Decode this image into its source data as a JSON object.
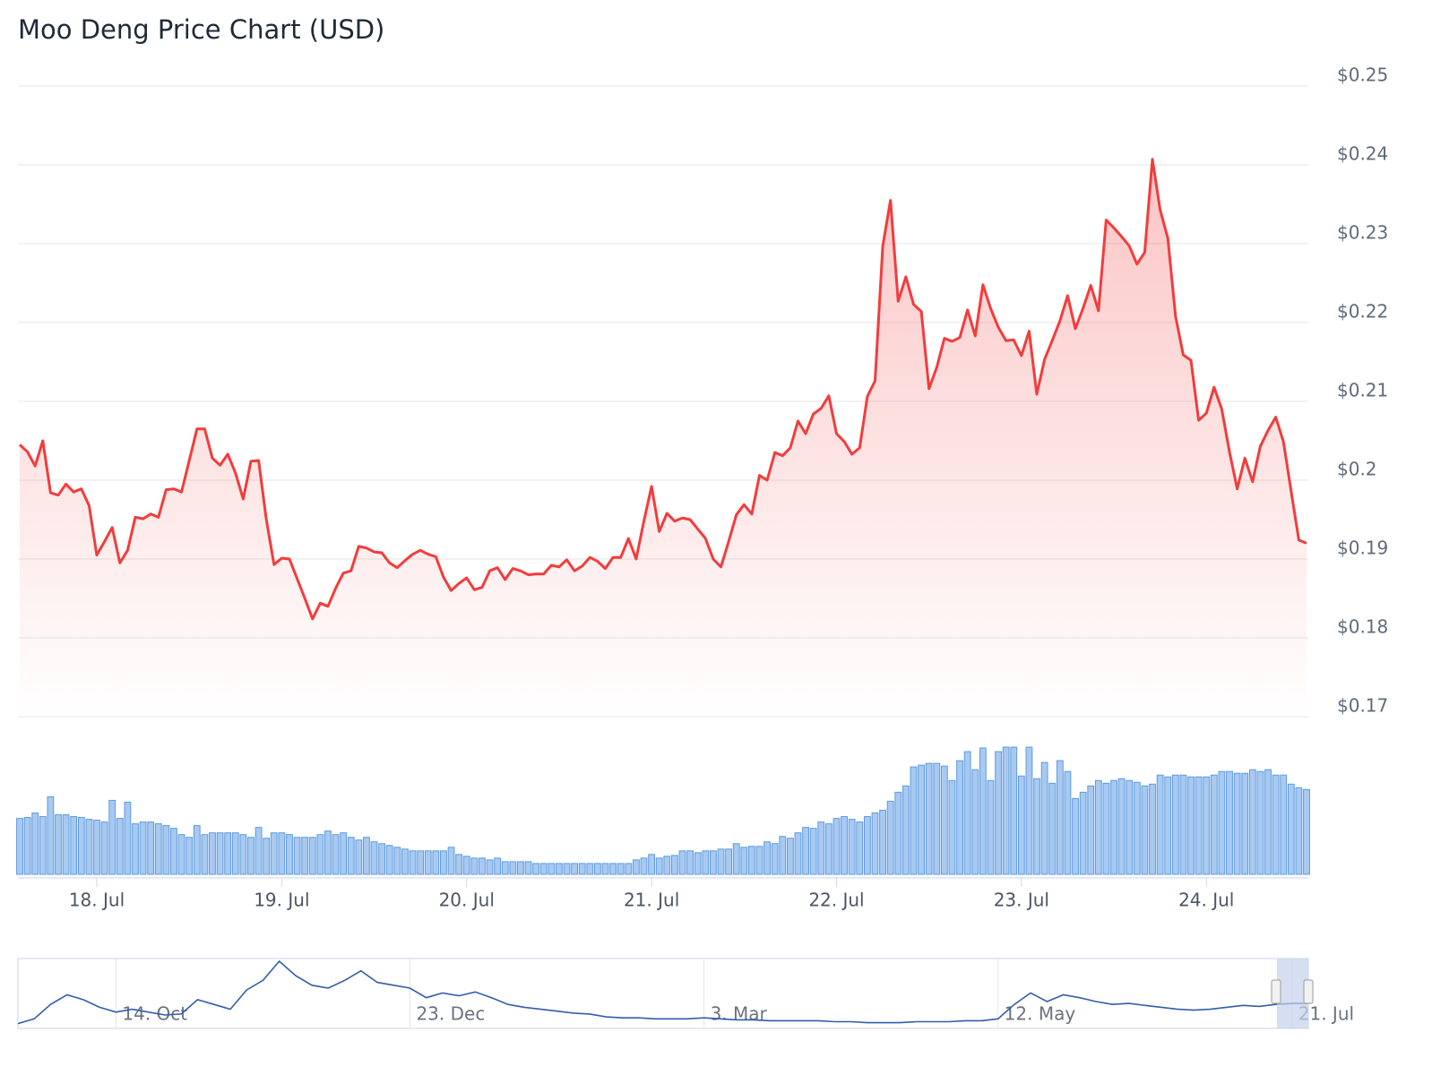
{
  "chart_data": [
    {
      "type": "line",
      "title": "Moo Deng Price Chart (USD)",
      "color": "#f23c3c",
      "grid": true,
      "ylim": [
        0.17,
        0.25
      ],
      "yticks": [
        {
          "value": 0.17,
          "label": "$0.17"
        },
        {
          "value": 0.18,
          "label": "$0.18"
        },
        {
          "value": 0.19,
          "label": "$0.19"
        },
        {
          "value": 0.2,
          "label": "$0.2"
        },
        {
          "value": 0.21,
          "label": "$0.21"
        },
        {
          "value": 0.22,
          "label": "$0.22"
        },
        {
          "value": 0.23,
          "label": "$0.23"
        },
        {
          "value": 0.24,
          "label": "$0.24"
        },
        {
          "value": 0.25,
          "label": "$0.25"
        }
      ],
      "categories": [
        null,
        null,
        null,
        null,
        null,
        null,
        null,
        null,
        null,
        null,
        "18. Jul",
        null,
        null,
        null,
        null,
        null,
        null,
        null,
        null,
        null,
        null,
        null,
        null,
        null,
        null,
        null,
        null,
        null,
        null,
        null,
        null,
        null,
        null,
        null,
        "19. Jul",
        null,
        null,
        null,
        null,
        null,
        null,
        null,
        null,
        null,
        null,
        null,
        null,
        null,
        null,
        null,
        null,
        null,
        null,
        null,
        null,
        null,
        null,
        null,
        "20. Jul",
        null,
        null,
        null,
        null,
        null,
        null,
        null,
        null,
        null,
        null,
        null,
        null,
        null,
        null,
        null,
        null,
        null,
        null,
        null,
        null,
        null,
        null,
        null,
        "21. Jul",
        null,
        null,
        null,
        null,
        null,
        null,
        null,
        null,
        null,
        null,
        null,
        null,
        null,
        null,
        null,
        null,
        null,
        null,
        null,
        null,
        null,
        null,
        null,
        "22. Jul",
        null,
        null,
        null,
        null,
        null,
        null,
        null,
        null,
        null,
        null,
        null,
        null,
        null,
        null,
        null,
        null,
        null,
        null,
        null,
        null,
        null,
        null,
        null,
        "23. Jul",
        null,
        null,
        null,
        null,
        null,
        null,
        null,
        null,
        null,
        null,
        null,
        null,
        null,
        null,
        null,
        null,
        null,
        null,
        null,
        null,
        null,
        null,
        null,
        "24. Jul",
        null,
        null,
        null,
        null,
        null,
        null,
        null,
        null,
        null,
        null,
        null,
        null,
        null
      ],
      "values": [
        0.2045,
        0.2036,
        0.2018,
        0.205,
        0.1984,
        0.1981,
        0.1995,
        0.1985,
        0.1989,
        0.1968,
        0.1905,
        0.1922,
        0.194,
        0.1895,
        0.1911,
        0.1953,
        0.1951,
        0.1957,
        0.1953,
        0.1988,
        0.1989,
        0.1985,
        0.2025,
        0.2065,
        0.2065,
        0.2028,
        0.2019,
        0.2033,
        0.2009,
        0.1976,
        0.2024,
        0.2025,
        0.195,
        0.1893,
        0.1901,
        0.19,
        0.1875,
        0.185,
        0.1824,
        0.1844,
        0.184,
        0.1863,
        0.1882,
        0.1885,
        0.1916,
        0.1914,
        0.1909,
        0.1908,
        0.1895,
        0.1889,
        0.1898,
        0.1906,
        0.1911,
        0.1906,
        0.1903,
        0.1877,
        0.186,
        0.1869,
        0.1876,
        0.1861,
        0.1864,
        0.1885,
        0.1889,
        0.1874,
        0.1888,
        0.1885,
        0.188,
        0.1881,
        0.1881,
        0.1892,
        0.189,
        0.1899,
        0.1885,
        0.1891,
        0.1902,
        0.1897,
        0.1888,
        0.1902,
        0.1902,
        0.1926,
        0.19,
        0.1948,
        0.1992,
        0.1935,
        0.1958,
        0.1948,
        0.1952,
        0.195,
        0.1938,
        0.1926,
        0.19,
        0.189,
        0.1922,
        0.1956,
        0.1969,
        0.1957,
        0.2006,
        0.2,
        0.2035,
        0.2031,
        0.2041,
        0.2075,
        0.2059,
        0.2084,
        0.2091,
        0.2107,
        0.2059,
        0.2049,
        0.2033,
        0.2041,
        0.2106,
        0.2126,
        0.2297,
        0.2355,
        0.2227,
        0.2258,
        0.2223,
        0.2214,
        0.2116,
        0.2143,
        0.218,
        0.2176,
        0.2181,
        0.2216,
        0.2183,
        0.2248,
        0.2218,
        0.2194,
        0.2177,
        0.2178,
        0.2158,
        0.2189,
        0.2109,
        0.2153,
        0.2177,
        0.2202,
        0.2234,
        0.2192,
        0.2218,
        0.2247,
        0.2215,
        0.233,
        0.232,
        0.2309,
        0.2297,
        0.2274,
        0.2289,
        0.2407,
        0.2343,
        0.2307,
        0.2208,
        0.2159,
        0.2152,
        0.2076,
        0.2085,
        0.2118,
        0.209,
        0.2036,
        0.1989,
        0.2028,
        0.1998,
        0.2043,
        0.2063,
        0.208,
        0.2049,
        0.1986,
        0.1924,
        0.192
      ]
    },
    {
      "type": "bar",
      "color": "#a9c9f0",
      "values": [
        62,
        63,
        68,
        64,
        86,
        66,
        66,
        64,
        63,
        61,
        60,
        58,
        82,
        62,
        80,
        56,
        58,
        58,
        56,
        54,
        51,
        44,
        41,
        54,
        44,
        46,
        46,
        46,
        46,
        44,
        41,
        52,
        40,
        46,
        46,
        44,
        41,
        41,
        41,
        44,
        48,
        44,
        46,
        41,
        38,
        41,
        36,
        34,
        32,
        30,
        28,
        26,
        26,
        26,
        26,
        26,
        30,
        22,
        20,
        18,
        18,
        16,
        18,
        14,
        14,
        14,
        14,
        12,
        12,
        12,
        12,
        12,
        12,
        12,
        12,
        12,
        12,
        12,
        12,
        12,
        16,
        18,
        22,
        18,
        20,
        21,
        26,
        26,
        24,
        26,
        26,
        28,
        28,
        34,
        30,
        31,
        31,
        36,
        34,
        42,
        40,
        46,
        52,
        51,
        58,
        56,
        62,
        64,
        61,
        58,
        64,
        68,
        71,
        81,
        91,
        98,
        119,
        121,
        123,
        123,
        120,
        104,
        126,
        136,
        116,
        140,
        104,
        136,
        141,
        141,
        109,
        141,
        106,
        124,
        101,
        126,
        114,
        84,
        91,
        98,
        104,
        101,
        104,
        106,
        104,
        102,
        98,
        100,
        110,
        108,
        110,
        110,
        108,
        108,
        108,
        110,
        114,
        114,
        112,
        112,
        116,
        114,
        116,
        110,
        110,
        100,
        96,
        94
      ]
    },
    {
      "type": "line",
      "color": "#335cad",
      "categories": [
        null,
        null,
        null,
        null,
        null,
        null,
        "14. Oct",
        null,
        null,
        null,
        null,
        null,
        null,
        null,
        null,
        null,
        null,
        null,
        null,
        null,
        null,
        null,
        null,
        null,
        "23. Dec",
        null,
        null,
        null,
        null,
        null,
        null,
        null,
        null,
        null,
        null,
        null,
        null,
        null,
        null,
        null,
        null,
        null,
        "3. Mar",
        null,
        null,
        null,
        null,
        null,
        null,
        null,
        null,
        null,
        null,
        null,
        null,
        null,
        null,
        null,
        null,
        null,
        "12. May",
        null,
        null,
        null,
        null,
        null,
        null,
        null,
        null,
        null,
        null,
        null,
        null,
        null,
        null,
        null,
        null,
        null,
        "21. Jul",
        null
      ],
      "values": [
        5,
        10,
        25,
        35,
        30,
        22,
        17,
        20,
        17,
        14,
        15,
        30,
        25,
        20,
        40,
        50,
        70,
        55,
        45,
        42,
        50,
        60,
        48,
        45,
        42,
        32,
        37,
        34,
        38,
        32,
        25,
        22,
        20,
        18,
        16,
        15,
        12,
        11,
        11,
        10,
        10,
        10,
        11,
        10,
        9,
        9,
        8,
        8,
        8,
        8,
        7,
        7,
        6,
        6,
        6,
        7,
        7,
        7,
        8,
        8,
        10,
        25,
        37,
        28,
        35,
        32,
        28,
        25,
        26,
        24,
        22,
        20,
        19,
        20,
        22,
        24,
        23,
        25,
        26,
        26
      ]
    }
  ]
}
